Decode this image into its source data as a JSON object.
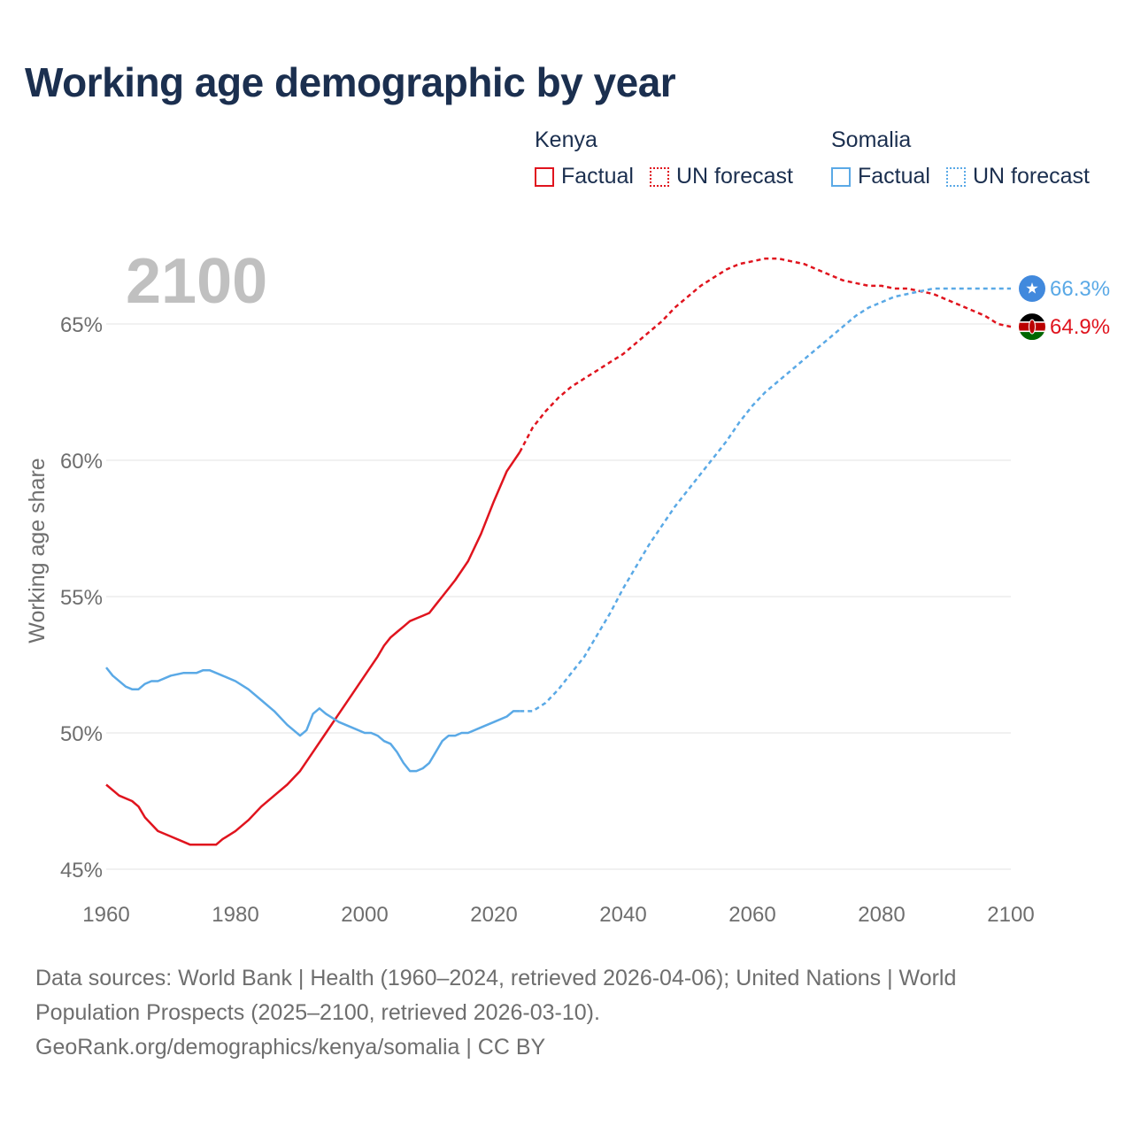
{
  "title": "Working age demographic by year",
  "legend": {
    "groups": [
      {
        "name": "Kenya",
        "color": "#e0141e",
        "factual_label": "Factual",
        "forecast_label": "UN forecast"
      },
      {
        "name": "Somalia",
        "color": "#5aa9e6",
        "factual_label": "Factual",
        "forecast_label": "UN forecast"
      }
    ]
  },
  "year_label": "2100",
  "footer": {
    "line1": "Data sources: World Bank | Health (1960–2024, retrieved 2026-04-06); United Nations | World",
    "line2": "Population Prospects (2025–2100, retrieved 2026-03-10).",
    "line3": "GeoRank.org/demographics/kenya/somalia | CC BY"
  },
  "chart_data": {
    "type": "line",
    "title": "Working age demographic by year",
    "xlabel": "",
    "ylabel": "Working age share",
    "xlim": [
      1960,
      2100
    ],
    "ylim": [
      45,
      67.5
    ],
    "x_ticks": [
      1960,
      1980,
      2000,
      2020,
      2040,
      2060,
      2080,
      2100
    ],
    "x_tick_labels": [
      "1960",
      "1980",
      "2000",
      "2020",
      "2040",
      "2060",
      "2080",
      "2100"
    ],
    "y_ticks": [
      45,
      50,
      55,
      60,
      65
    ],
    "y_tick_labels": [
      "45%",
      "50%",
      "55%",
      "60%",
      "65%"
    ],
    "grid": true,
    "series": [
      {
        "name": "Kenya",
        "color": "#e0141e",
        "end_label": "64.9%",
        "factual": {
          "x": [
            1960,
            1962,
            1964,
            1965,
            1966,
            1968,
            1970,
            1972,
            1973,
            1975,
            1977,
            1978,
            1980,
            1982,
            1984,
            1986,
            1988,
            1990,
            1992,
            1994,
            1996,
            1998,
            2000,
            2002,
            2003,
            2004,
            2005,
            2006,
            2007,
            2008,
            2009,
            2010,
            2011,
            2012,
            2014,
            2016,
            2018,
            2020,
            2022,
            2024
          ],
          "values": [
            48.1,
            47.7,
            47.5,
            47.3,
            46.9,
            46.4,
            46.2,
            46.0,
            45.9,
            45.9,
            45.9,
            46.1,
            46.4,
            46.8,
            47.3,
            47.7,
            48.1,
            48.6,
            49.3,
            50.0,
            50.7,
            51.4,
            52.1,
            52.8,
            53.2,
            53.5,
            53.7,
            53.9,
            54.1,
            54.2,
            54.3,
            54.4,
            54.7,
            55.0,
            55.6,
            56.3,
            57.3,
            58.5,
            59.6,
            60.3
          ]
        },
        "forecast": {
          "x": [
            2024,
            2026,
            2028,
            2030,
            2032,
            2034,
            2036,
            2038,
            2040,
            2042,
            2044,
            2046,
            2048,
            2050,
            2052,
            2054,
            2056,
            2058,
            2060,
            2062,
            2064,
            2066,
            2068,
            2070,
            2072,
            2074,
            2076,
            2078,
            2080,
            2082,
            2084,
            2086,
            2088,
            2090,
            2092,
            2094,
            2096,
            2098,
            2100
          ],
          "values": [
            60.3,
            61.2,
            61.8,
            62.3,
            62.7,
            63.0,
            63.3,
            63.6,
            63.9,
            64.3,
            64.7,
            65.1,
            65.6,
            66.0,
            66.4,
            66.7,
            67.0,
            67.2,
            67.3,
            67.4,
            67.4,
            67.3,
            67.2,
            67.0,
            66.8,
            66.6,
            66.5,
            66.4,
            66.4,
            66.3,
            66.3,
            66.2,
            66.1,
            65.9,
            65.7,
            65.5,
            65.3,
            65.0,
            64.9
          ]
        }
      },
      {
        "name": "Somalia",
        "color": "#5aa9e6",
        "end_label": "66.3%",
        "factual": {
          "x": [
            1960,
            1961,
            1963,
            1964,
            1965,
            1966,
            1967,
            1968,
            1970,
            1972,
            1974,
            1975,
            1976,
            1978,
            1980,
            1982,
            1984,
            1986,
            1988,
            1990,
            1991,
            1992,
            1993,
            1994,
            1996,
            1998,
            2000,
            2001,
            2002,
            2003,
            2004,
            2005,
            2006,
            2007,
            2008,
            2009,
            2010,
            2011,
            2012,
            2013,
            2014,
            2015,
            2016,
            2018,
            2020,
            2022,
            2023,
            2024
          ],
          "values": [
            52.4,
            52.1,
            51.7,
            51.6,
            51.6,
            51.8,
            51.9,
            51.9,
            52.1,
            52.2,
            52.2,
            52.3,
            52.3,
            52.1,
            51.9,
            51.6,
            51.2,
            50.8,
            50.3,
            49.9,
            50.1,
            50.7,
            50.9,
            50.7,
            50.4,
            50.2,
            50.0,
            50.0,
            49.9,
            49.7,
            49.6,
            49.3,
            48.9,
            48.6,
            48.6,
            48.7,
            48.9,
            49.3,
            49.7,
            49.9,
            49.9,
            50.0,
            50.0,
            50.2,
            50.4,
            50.6,
            50.8,
            50.8
          ]
        },
        "forecast": {
          "x": [
            2024,
            2026,
            2028,
            2030,
            2032,
            2034,
            2036,
            2038,
            2040,
            2042,
            2044,
            2046,
            2048,
            2050,
            2052,
            2054,
            2056,
            2058,
            2060,
            2062,
            2064,
            2066,
            2068,
            2070,
            2072,
            2074,
            2076,
            2078,
            2080,
            2082,
            2084,
            2086,
            2088,
            2090,
            2092,
            2094,
            2096,
            2098,
            2100
          ],
          "values": [
            50.8,
            50.8,
            51.1,
            51.6,
            52.2,
            52.8,
            53.6,
            54.4,
            55.3,
            56.1,
            56.9,
            57.6,
            58.3,
            58.9,
            59.5,
            60.1,
            60.7,
            61.4,
            62.0,
            62.5,
            62.9,
            63.3,
            63.7,
            64.1,
            64.5,
            64.9,
            65.3,
            65.6,
            65.8,
            66.0,
            66.1,
            66.2,
            66.3,
            66.3,
            66.3,
            66.3,
            66.3,
            66.3,
            66.3
          ]
        }
      }
    ]
  }
}
